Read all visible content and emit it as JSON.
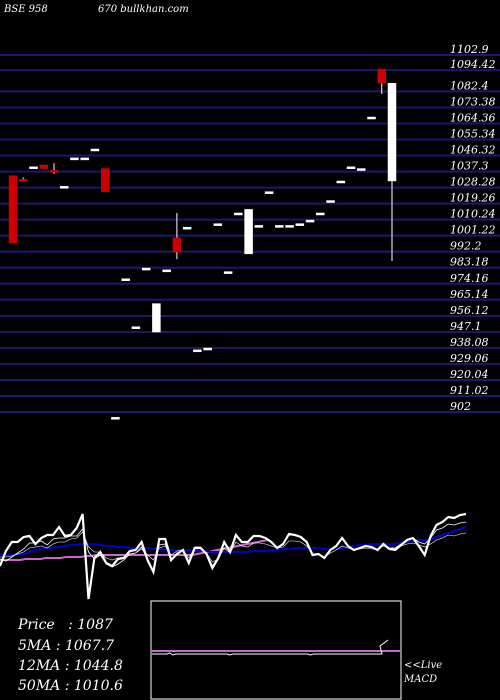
{
  "header": {
    "left": "BSE 958",
    "middle": "670 bullkhan.com"
  },
  "stats": {
    "price_label": "Price   :",
    "price": "1087",
    "ma5_label": "5MA :",
    "ma5": "1067.7",
    "ma12_label": "12MA :",
    "ma12": "1044.8",
    "ma50_label": "50MA :",
    "ma50": "1010.6"
  },
  "macd_label": {
    "line1": "<<Live",
    "line2": "MACD"
  },
  "colors": {
    "background": "#000000",
    "grid": "#191970",
    "bull_candle": "#ffffff",
    "bear_candle": "#cc0000",
    "ma_short": "#ffffff",
    "ma_long": "#0000cd",
    "ma_50": "#cc66cc",
    "macd_signal": "#cc66cc"
  },
  "chart_data": {
    "type": "candlestick",
    "y_ticks": [
      "1102.9",
      "1094.42",
      "1082.4",
      "1073.38",
      "1064.36",
      "1055.34",
      "1046.32",
      "1037.3",
      "1028.28",
      "1019.26",
      "1010.24",
      "1001.22",
      "992.2",
      "983.18",
      "974.16",
      "965.14",
      "956.12",
      "947.1",
      "938.08",
      "929.06",
      "920.04",
      "911.02",
      "902"
    ],
    "y_tick_values": [
      1102.9,
      1094.42,
      1082.4,
      1073.38,
      1064.36,
      1055.34,
      1046.32,
      1037.3,
      1028.28,
      1019.26,
      1010.24,
      1001.22,
      992.2,
      983.18,
      974.16,
      965.14,
      956.12,
      947.1,
      938.08,
      929.06,
      920.04,
      911.02,
      902
    ],
    "ylim": [
      902,
      1102.9
    ],
    "grid": true,
    "candles": [
      {
        "o": 1035,
        "h": 1035,
        "l": 997,
        "c": 997
      },
      {
        "o": 1033,
        "h": 1034,
        "l": 1032,
        "c": 1032
      },
      {
        "o": 1040,
        "h": 1040,
        "l": 1040,
        "c": 1040
      },
      {
        "o": 1041,
        "h": 1041,
        "l": 1039,
        "c": 1039
      },
      {
        "o": 1038,
        "h": 1042,
        "l": 1036,
        "c": 1037
      },
      {
        "o": 1029,
        "h": 1029,
        "l": 1029,
        "c": 1029
      },
      {
        "o": 1045,
        "h": 1045,
        "l": 1045,
        "c": 1045
      },
      {
        "o": 1045,
        "h": 1045,
        "l": 1045,
        "c": 1045
      },
      {
        "o": 1050,
        "h": 1050,
        "l": 1050,
        "c": 1050
      },
      {
        "o": 1039,
        "h": 1039,
        "l": 1026,
        "c": 1026
      },
      {
        "o": 899,
        "h": 899,
        "l": 899,
        "c": 899
      },
      {
        "o": 977,
        "h": 977,
        "l": 977,
        "c": 977
      },
      {
        "o": 950,
        "h": 950,
        "l": 950,
        "c": 950
      },
      {
        "o": 983,
        "h": 983,
        "l": 983,
        "c": 983
      },
      {
        "o": 947,
        "h": 963,
        "l": 947,
        "c": 963
      },
      {
        "o": 982,
        "h": 982,
        "l": 982,
        "c": 982
      },
      {
        "o": 1000,
        "h": 1014,
        "l": 988,
        "c": 992
      },
      {
        "o": 1006,
        "h": 1006,
        "l": 1006,
        "c": 1006
      },
      {
        "o": 937,
        "h": 937,
        "l": 937,
        "c": 937
      },
      {
        "o": 938,
        "h": 938,
        "l": 938,
        "c": 938
      },
      {
        "o": 1008,
        "h": 1008,
        "l": 1008,
        "c": 1008
      },
      {
        "o": 981,
        "h": 981,
        "l": 981,
        "c": 981
      },
      {
        "o": 1014,
        "h": 1014,
        "l": 1014,
        "c": 1014
      },
      {
        "o": 991,
        "h": 1016,
        "l": 991,
        "c": 1016
      },
      {
        "o": 1007,
        "h": 1007,
        "l": 1007,
        "c": 1007
      },
      {
        "o": 1026,
        "h": 1026,
        "l": 1026,
        "c": 1026
      },
      {
        "o": 1007,
        "h": 1007,
        "l": 1007,
        "c": 1007
      },
      {
        "o": 1007,
        "h": 1007,
        "l": 1007,
        "c": 1007
      },
      {
        "o": 1008,
        "h": 1008,
        "l": 1008,
        "c": 1008
      },
      {
        "o": 1010,
        "h": 1010,
        "l": 1010,
        "c": 1010
      },
      {
        "o": 1014,
        "h": 1014,
        "l": 1014,
        "c": 1014
      },
      {
        "o": 1021,
        "h": 1021,
        "l": 1021,
        "c": 1021
      },
      {
        "o": 1032,
        "h": 1032,
        "l": 1032,
        "c": 1032
      },
      {
        "o": 1040,
        "h": 1040,
        "l": 1040,
        "c": 1040
      },
      {
        "o": 1039,
        "h": 1039,
        "l": 1039,
        "c": 1039
      },
      {
        "o": 1068,
        "h": 1068,
        "l": 1068,
        "c": 1068
      },
      {
        "o": 1095,
        "h": 1095,
        "l": 1081,
        "c": 1087
      },
      {
        "o": 1032,
        "h": 1087,
        "l": 987,
        "c": 1087
      }
    ],
    "lower_panel": {
      "price": [
        66,
        51,
        42,
        42,
        37,
        36,
        44,
        38,
        35,
        35,
        27,
        36,
        35,
        28,
        14,
        99,
        58,
        52,
        63,
        66,
        59,
        58,
        51,
        50,
        42,
        60,
        72,
        39,
        39,
        60,
        54,
        50,
        63,
        48,
        48,
        54,
        68,
        58,
        42,
        52,
        35,
        42,
        42,
        36,
        36,
        38,
        42,
        48,
        44,
        34,
        35,
        37,
        42,
        55,
        54,
        58,
        50,
        46,
        38,
        46,
        50,
        48,
        46,
        47,
        50,
        44,
        49,
        50,
        45,
        40,
        38,
        46,
        55,
        36,
        25,
        22,
        17,
        18,
        15,
        14
      ],
      "ma_short": [
        59,
        61,
        57,
        53,
        49,
        43,
        43,
        41,
        45,
        39,
        38,
        38,
        36,
        36,
        29,
        52,
        59,
        55,
        64,
        67,
        64,
        60,
        54,
        53,
        47,
        60,
        71,
        45,
        44,
        61,
        53,
        51,
        62,
        47,
        47,
        54,
        66,
        58,
        43,
        52,
        36,
        42,
        43,
        36,
        36,
        38,
        42,
        47,
        44,
        35,
        35,
        37,
        42,
        55,
        54,
        58,
        50,
        46,
        38,
        46,
        50,
        48,
        46,
        47,
        50,
        44,
        48,
        48,
        44,
        40,
        38,
        42,
        44,
        38,
        30,
        28,
        24,
        25,
        23,
        22
      ],
      "ma_long": [
        57,
        57,
        56,
        54,
        52,
        48,
        47,
        46,
        48,
        44,
        42,
        42,
        39,
        38,
        32,
        47,
        52,
        52,
        58,
        60,
        58,
        57,
        54,
        53,
        49,
        55,
        60,
        48,
        46,
        55,
        51,
        50,
        58,
        48,
        48,
        53,
        62,
        59,
        48,
        53,
        42,
        46,
        47,
        43,
        43,
        44,
        46,
        48,
        47,
        41,
        41,
        42,
        46,
        54,
        54,
        57,
        53,
        50,
        46,
        48,
        50,
        49,
        48,
        49,
        49,
        46,
        48,
        48,
        46,
        44,
        43,
        45,
        47,
        44,
        40,
        38,
        35,
        36,
        34,
        33
      ],
      "ma_blue": [
        54,
        55,
        55,
        54,
        54,
        52,
        50,
        49,
        48,
        48,
        47,
        46,
        45,
        45,
        44,
        44,
        44,
        45,
        46,
        46,
        47,
        47,
        48,
        48,
        48,
        48,
        49,
        49,
        50,
        50,
        50,
        50,
        50,
        51,
        51,
        51,
        52,
        52,
        52,
        52,
        52,
        52,
        52,
        51,
        51,
        51,
        50,
        50,
        49,
        49,
        48,
        48,
        48,
        48,
        48,
        49,
        49,
        49,
        48,
        47,
        46,
        45,
        45,
        44,
        44,
        44,
        44,
        44,
        43,
        42,
        41,
        40,
        40,
        39,
        37,
        35,
        33,
        31,
        29,
        27
      ],
      "ma_50": [
        60,
        60,
        60,
        60,
        60,
        59,
        59,
        59,
        59,
        58,
        58,
        58,
        58,
        57,
        57,
        57,
        57,
        56,
        56,
        55,
        55,
        55,
        55,
        55,
        55,
        55,
        55,
        55,
        55,
        55,
        55,
        55,
        55,
        55,
        55,
        55,
        55,
        55,
        55,
        54,
        53,
        52,
        51,
        50,
        49,
        48,
        47,
        46,
        45,
        44,
        43,
        42,
        41,
        40
      ],
      "macd_signal": [
        34,
        34,
        34,
        34,
        34,
        34,
        33,
        35,
        34,
        34,
        34,
        34,
        34,
        34,
        34,
        34,
        34,
        34,
        34,
        34,
        34,
        34,
        34,
        34,
        34,
        34,
        35,
        34,
        34,
        34,
        34,
        34,
        34,
        34,
        34,
        34,
        34,
        34,
        34,
        34,
        34,
        34,
        34,
        34,
        34,
        34,
        34,
        34,
        34,
        34,
        34,
        34,
        34,
        35,
        34,
        34,
        34,
        34,
        34,
        34,
        34,
        34,
        34,
        34,
        34,
        34,
        34,
        34,
        34,
        34,
        34,
        34,
        34,
        34,
        34,
        34,
        34,
        34,
        34,
        34
      ]
    }
  }
}
